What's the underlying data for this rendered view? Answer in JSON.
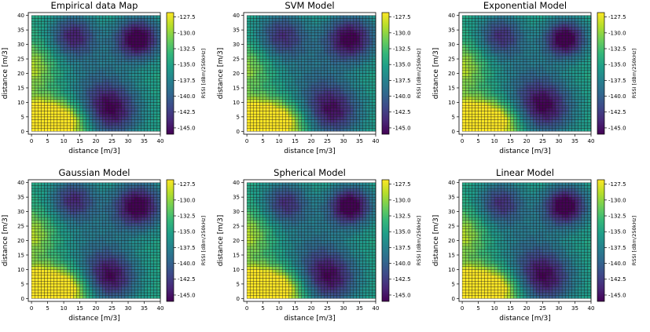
{
  "chart_data": [
    {
      "type": "heatmap",
      "title": "Empirical data Map",
      "xlabel": "distance [m/3]",
      "ylabel": "distance [m/3]",
      "xlim": [
        -1,
        40
      ],
      "ylim": [
        -1,
        41
      ],
      "xticks": [
        "0",
        "5",
        "10",
        "15",
        "20",
        "25",
        "30",
        "35",
        "40"
      ],
      "yticks": [
        "0",
        "5",
        "10",
        "15",
        "20",
        "25",
        "30",
        "35",
        "40"
      ],
      "grid": 40,
      "colorbar": {
        "label": "RSSI [dBm/250kHz]",
        "min": -146,
        "max": -126.8,
        "ticks": [
          "-127.5",
          "-130.0",
          "-132.5",
          "-135.0",
          "-137.5",
          "-140.0",
          "-142.5",
          "-145.0"
        ]
      },
      "blobs": [
        [
          33,
          32,
          5.0,
          13.0
        ],
        [
          13,
          33,
          5.0,
          9.5
        ],
        [
          24,
          7,
          6.5,
          12.0
        ],
        [
          20,
          20,
          8,
          3
        ]
      ],
      "hot": [
        [
          2,
          3,
          10,
          5,
          18.0
        ],
        [
          -1,
          22,
          6,
          6,
          6
        ]
      ]
    },
    {
      "type": "heatmap",
      "title": "SVM Model",
      "xlabel": "distance [m/3]",
      "ylabel": "distance [m/3]",
      "xlim": [
        -1,
        40
      ],
      "ylim": [
        -1,
        41
      ],
      "xticks": [
        "0",
        "5",
        "10",
        "15",
        "20",
        "25",
        "30",
        "35",
        "40"
      ],
      "yticks": [
        "0",
        "5",
        "10",
        "15",
        "20",
        "25",
        "30",
        "35",
        "40"
      ],
      "grid": 40,
      "colorbar": {
        "label": "RSSI [dBm/250kHz]",
        "min": -146,
        "max": -126.8,
        "ticks": [
          "-127.5",
          "-130.0",
          "-132.5",
          "-135.0",
          "-137.5",
          "-140.0",
          "-142.5",
          "-145.0"
        ]
      },
      "blobs": [
        [
          32,
          32,
          5.5,
          12.0
        ],
        [
          11,
          33,
          5.5,
          8.5
        ],
        [
          26,
          7,
          6.5,
          11.0
        ],
        [
          20,
          20,
          8,
          3
        ]
      ],
      "hot": [
        [
          2,
          3,
          10,
          5,
          17.5
        ],
        [
          -1,
          22,
          6,
          6,
          5
        ]
      ]
    },
    {
      "type": "heatmap",
      "title": "Exponential Model",
      "xlabel": "distance [m/3]",
      "ylabel": "distance [m/3]",
      "xlim": [
        -1,
        40
      ],
      "ylim": [
        -1,
        41
      ],
      "xticks": [
        "0",
        "5",
        "10",
        "15",
        "20",
        "25",
        "30",
        "35",
        "40"
      ],
      "yticks": [
        "0",
        "5",
        "10",
        "15",
        "20",
        "25",
        "30",
        "35",
        "40"
      ],
      "grid": 40,
      "colorbar": {
        "label": "RSSI [dBm/250kHz]",
        "min": -146,
        "max": -126.8,
        "ticks": [
          "-127.5",
          "-130.0",
          "-132.5",
          "-135.0",
          "-137.5",
          "-140.0",
          "-142.5",
          "-145.0"
        ]
      },
      "blobs": [
        [
          32,
          32,
          4.5,
          13.0
        ],
        [
          12,
          33,
          5.0,
          8.5
        ],
        [
          25,
          8,
          6.5,
          11.5
        ],
        [
          20,
          20,
          8,
          3
        ]
      ],
      "hot": [
        [
          2,
          3,
          10,
          5,
          18.0
        ],
        [
          -1,
          22,
          6,
          6,
          6
        ]
      ]
    },
    {
      "type": "heatmap",
      "title": "Gaussian Model",
      "xlabel": "distance [m/3]",
      "ylabel": "distance [m/3]",
      "xlim": [
        -1,
        40
      ],
      "ylim": [
        -1,
        41
      ],
      "xticks": [
        "0",
        "5",
        "10",
        "15",
        "20",
        "25",
        "30",
        "35",
        "40"
      ],
      "yticks": [
        "0",
        "5",
        "10",
        "15",
        "20",
        "25",
        "30",
        "35",
        "40"
      ],
      "grid": 40,
      "colorbar": {
        "label": "RSSI [dBm/250kHz]",
        "min": -146,
        "max": -126.8,
        "ticks": [
          "-127.5",
          "-130.0",
          "-132.5",
          "-135.0",
          "-137.5",
          "-140.0",
          "-142.5",
          "-145.0"
        ]
      },
      "blobs": [
        [
          33,
          32,
          5.5,
          12.5
        ],
        [
          13,
          34,
          5.0,
          9.0
        ],
        [
          24,
          7,
          6.0,
          11.5
        ],
        [
          20,
          20,
          8,
          3
        ]
      ],
      "hot": [
        [
          2,
          3,
          10,
          5,
          18.0
        ],
        [
          -1,
          22,
          6,
          6,
          6
        ]
      ]
    },
    {
      "type": "heatmap",
      "title": "Spherical Model",
      "xlabel": "distance [m/3]",
      "ylabel": "distance [m/3]",
      "xlim": [
        -1,
        40
      ],
      "ylim": [
        -1,
        41
      ],
      "xticks": [
        "0",
        "5",
        "10",
        "15",
        "20",
        "25",
        "30",
        "35",
        "40"
      ],
      "yticks": [
        "0",
        "5",
        "10",
        "15",
        "20",
        "25",
        "30",
        "35",
        "40"
      ],
      "grid": 40,
      "colorbar": {
        "label": "RSSI [dBm/250kHz]",
        "min": -146,
        "max": -126.8,
        "ticks": [
          "-127.5",
          "-130.0",
          "-132.5",
          "-135.0",
          "-137.5",
          "-140.0",
          "-142.5",
          "-145.0"
        ]
      },
      "blobs": [
        [
          32,
          32,
          4.8,
          13.0
        ],
        [
          12,
          33,
          5.0,
          8.5
        ],
        [
          25,
          7,
          6.5,
          11.5
        ],
        [
          20,
          20,
          8,
          3
        ]
      ],
      "hot": [
        [
          2,
          3,
          10,
          5,
          18.0
        ],
        [
          -1,
          22,
          6,
          6,
          6
        ]
      ]
    },
    {
      "type": "heatmap",
      "title": "Linear Model",
      "xlabel": "distance [m/3]",
      "ylabel": "distance [m/3]",
      "xlim": [
        -1,
        40
      ],
      "ylim": [
        -1,
        41
      ],
      "xticks": [
        "0",
        "5",
        "10",
        "15",
        "20",
        "25",
        "30",
        "35",
        "40"
      ],
      "yticks": [
        "0",
        "5",
        "10",
        "15",
        "20",
        "25",
        "30",
        "35",
        "40"
      ],
      "grid": 40,
      "colorbar": {
        "label": "RSSI [dBm/250kHz]",
        "min": -146,
        "max": -126.8,
        "ticks": [
          "-127.5",
          "-130.0",
          "-132.5",
          "-135.0",
          "-137.5",
          "-140.0",
          "-142.5",
          "-145.0"
        ]
      },
      "blobs": [
        [
          32,
          32,
          4.8,
          13.0
        ],
        [
          12,
          33,
          5.0,
          8.5
        ],
        [
          25,
          7,
          6.5,
          11.5
        ],
        [
          20,
          20,
          8,
          3
        ]
      ],
      "hot": [
        [
          2,
          3,
          10,
          5,
          18.0
        ],
        [
          -1,
          22,
          6,
          6,
          6
        ]
      ]
    }
  ],
  "colors": {
    "viridis": [
      "#440154",
      "#482878",
      "#3e4989",
      "#31688e",
      "#26828e",
      "#1f9e89",
      "#35b779",
      "#6ece58",
      "#b5de2b",
      "#fde725"
    ]
  }
}
